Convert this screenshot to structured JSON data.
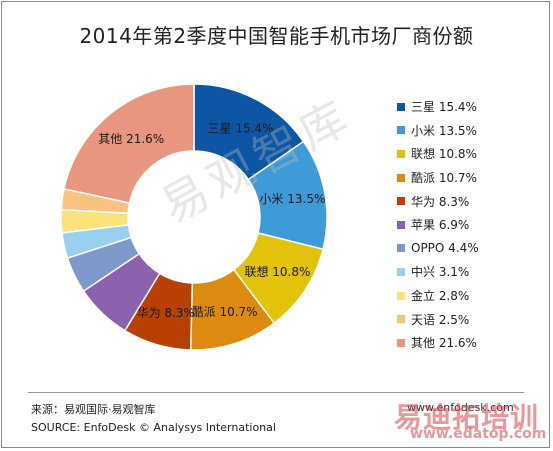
{
  "title": "2014年第2季度中国智能手机市场厂商份额",
  "chart_data": {
    "type": "pie",
    "variant": "donut",
    "title": "2014年第2季度中国智能手机市场厂商份额",
    "labels": [
      "三星",
      "小米",
      "联想",
      "酷派",
      "华为",
      "苹果",
      "OPPO",
      "中兴",
      "金立",
      "天语",
      "其他"
    ],
    "values": [
      15.4,
      13.5,
      10.8,
      10.7,
      8.3,
      6.9,
      4.4,
      3.1,
      2.8,
      2.5,
      21.6
    ],
    "slice_labels": [
      "三星 15.4%",
      "小米 13.5%",
      "联想 10.8%",
      "酷派 10.7%",
      "华为 8.3%",
      "",
      "",
      "",
      "",
      "",
      "其他 21.6%"
    ],
    "legend_labels": [
      "三星 15.4%",
      "小米 13.5%",
      "联想 10.8%",
      "酷派 10.7%",
      "华为 8.3%",
      "苹果 6.9%",
      "OPPO 4.4%",
      "中兴 3.1%",
      "金立 2.8%",
      "天语 2.5%",
      "其他 21.6%"
    ],
    "colors": [
      "#0d56a6",
      "#3f9bd8",
      "#e2c20a",
      "#dd8b10",
      "#b84004",
      "#8b62ad",
      "#7d98cb",
      "#9ad0ef",
      "#fbe37a",
      "#f7c480",
      "#e8967f"
    ],
    "legend_position": "right"
  },
  "footer": {
    "source_cn": "来源：易观国际·易观智库",
    "source_en": "SOURCE: EnfoDesk © Analysys International",
    "site": "www.enfodesk.com"
  },
  "watermarks": {
    "center": "易观智库",
    "bottom_text": "易迪拓培训",
    "bottom_url": "www.edatop.com"
  }
}
